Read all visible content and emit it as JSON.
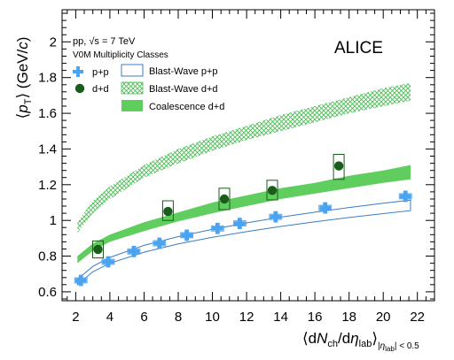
{
  "chart_data": {
    "type": "scatter",
    "ylabel": "⟨p_T⟩ (GeV/c)",
    "xlabel": "⟨dN_ch/dη_lab⟩_|η_lab|<0.5",
    "xlim": [
      1.2,
      23.0
    ],
    "ylim": [
      0.55,
      2.18
    ],
    "x_ticks": [
      2,
      4,
      6,
      8,
      10,
      12,
      14,
      16,
      18,
      20,
      22
    ],
    "y_ticks": [
      0.6,
      0.8,
      1.0,
      1.2,
      1.4,
      1.6,
      1.8,
      2.0
    ],
    "y_tick_labels": [
      "0.6",
      "0.8",
      "1",
      "1.2",
      "1.4",
      "1.6",
      "1.8",
      "2"
    ],
    "annotations": {
      "system": "pp, √s = 7 TeV",
      "classes": "V0M Multiplicity Classes",
      "experiment": "ALICE"
    },
    "legend": {
      "pp": "p+p",
      "dd": "d+d",
      "bw_pp": "Blast-Wave p+p",
      "bw_dd": "Blast-Wave d+d",
      "coal": "Coalescence d+d"
    },
    "series": [
      {
        "name": "p+p",
        "marker": "cross",
        "color": "#4aa3f0",
        "points": [
          {
            "x": 2.3,
            "y": 0.664
          },
          {
            "x": 3.9,
            "y": 0.768
          },
          {
            "x": 5.4,
            "y": 0.826
          },
          {
            "x": 6.9,
            "y": 0.872
          },
          {
            "x": 8.5,
            "y": 0.917
          },
          {
            "x": 10.3,
            "y": 0.955
          },
          {
            "x": 11.6,
            "y": 0.983
          },
          {
            "x": 13.7,
            "y": 1.02
          },
          {
            "x": 16.6,
            "y": 1.07
          },
          {
            "x": 21.3,
            "y": 1.135
          }
        ]
      },
      {
        "name": "d+d",
        "marker": "circle",
        "color": "#1a5c1a",
        "points": [
          {
            "x": 3.3,
            "y": 0.838,
            "sys_up": 0.885,
            "sys_low": 0.79
          },
          {
            "x": 7.4,
            "y": 1.05,
            "sys_up": 1.11,
            "sys_low": 1.0
          },
          {
            "x": 10.7,
            "y": 1.12,
            "sys_up": 1.18,
            "sys_low": 1.06
          },
          {
            "x": 13.5,
            "y": 1.168,
            "sys_up": 1.225,
            "sys_low": 1.115
          },
          {
            "x": 17.4,
            "y": 1.305,
            "sys_up": 1.37,
            "sys_low": 1.23
          }
        ]
      }
    ],
    "bands": {
      "bw_pp": {
        "color": "#3a7dc4",
        "x": [
          2.1,
          3,
          4,
          6,
          8,
          10,
          12,
          14,
          16,
          18,
          20,
          21.6
        ],
        "low": [
          0.64,
          0.712,
          0.76,
          0.822,
          0.868,
          0.905,
          0.937,
          0.966,
          0.992,
          1.016,
          1.038,
          1.055
        ],
        "high": [
          0.67,
          0.742,
          0.793,
          0.86,
          0.909,
          0.95,
          0.986,
          1.018,
          1.046,
          1.072,
          1.096,
          1.114
        ]
      },
      "bw_dd": {
        "color": "#4cbb55",
        "x": [
          2.1,
          3,
          4,
          6,
          8,
          10,
          12,
          14,
          16,
          18,
          20,
          21.6
        ],
        "low": [
          0.93,
          1.04,
          1.12,
          1.24,
          1.32,
          1.39,
          1.45,
          1.5,
          1.55,
          1.6,
          1.64,
          1.67
        ],
        "high": [
          0.99,
          1.11,
          1.19,
          1.31,
          1.4,
          1.47,
          1.53,
          1.59,
          1.64,
          1.69,
          1.74,
          1.77
        ]
      },
      "coal": {
        "color": "#5fce5f",
        "x": [
          2.1,
          3,
          4,
          6,
          8,
          10,
          12,
          14,
          16,
          18,
          20,
          21.6
        ],
        "low": [
          0.76,
          0.83,
          0.88,
          0.94,
          0.995,
          1.04,
          1.08,
          1.12,
          1.15,
          1.18,
          1.21,
          1.23
        ],
        "high": [
          0.8,
          0.87,
          0.92,
          0.99,
          1.045,
          1.1,
          1.14,
          1.18,
          1.21,
          1.25,
          1.28,
          1.31
        ]
      }
    }
  }
}
